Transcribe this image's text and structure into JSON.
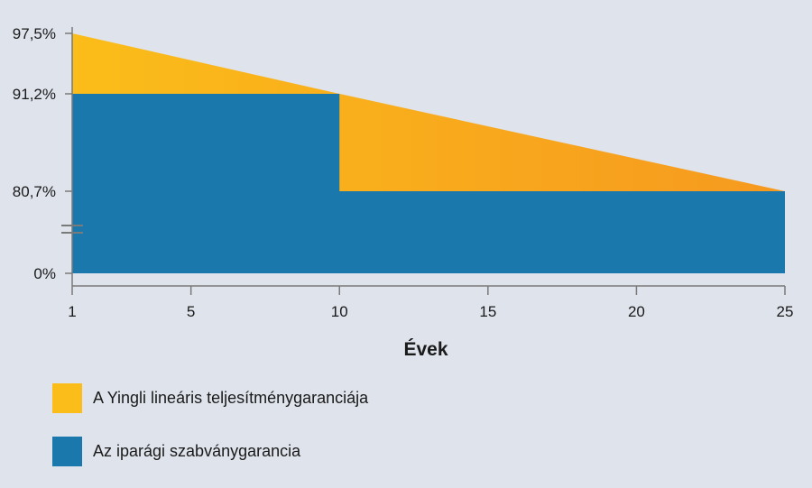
{
  "chart_data": {
    "type": "area",
    "xlabel": "Évek",
    "ylabel": "",
    "x_ticks": [
      "1",
      "5",
      "10",
      "15",
      "20",
      "25"
    ],
    "y_ticks": [
      "97,5%",
      "91,2%",
      "80,7%",
      "0%"
    ],
    "axis_break": true,
    "legend_position": "bottom-left",
    "series": [
      {
        "name": "A Yingli lineáris teljesítménygaranciája",
        "color": "#fbbd19",
        "color_end": "#f6991f",
        "points": [
          [
            1,
            97.5
          ],
          [
            10,
            91.2
          ],
          [
            25,
            80.7
          ]
        ]
      },
      {
        "name": "Az iparági szabványgarancia",
        "color": "#1a78ad",
        "points": [
          [
            1,
            91.2
          ],
          [
            10,
            91.2
          ],
          [
            10,
            80.7
          ],
          [
            25,
            80.7
          ]
        ]
      }
    ]
  }
}
